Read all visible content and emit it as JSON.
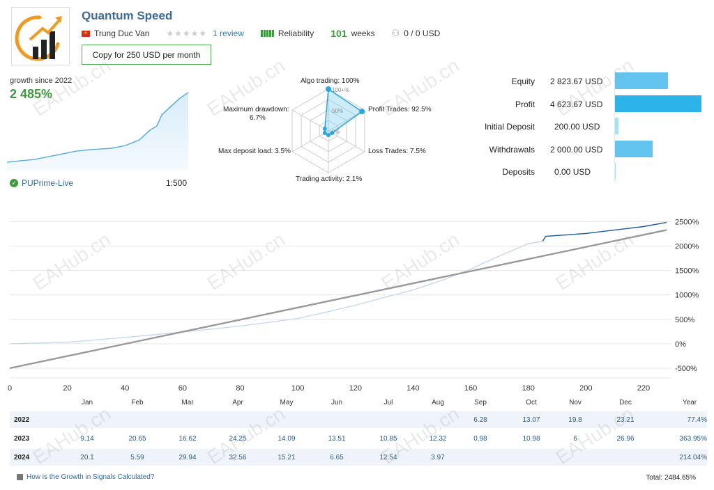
{
  "header": {
    "title": "Quantum Speed",
    "author": "Trung Duc Van",
    "review_link": "1 review",
    "reliability_label": "Reliability",
    "weeks_value": "101",
    "weeks_label": "weeks",
    "subscribers": "0 / 0 USD",
    "copy_button": "Copy for 250 USD per month",
    "rating_stars": 0,
    "reliability_bars": 5,
    "colors": {
      "accent": "#3a6b9a",
      "green": "#3d9a3d",
      "link": "#3a78b8"
    }
  },
  "growth": {
    "label": "growth since 2022",
    "value": "2 485%",
    "broker": "PUPrime-Live",
    "leverage": "1:500"
  },
  "radar": {
    "labels": {
      "algo": "Algo trading: 100%",
      "profit": "Profit Trades: 92.5%",
      "loss": "Loss Trades: 7.5%",
      "activity": "Trading activity: 2.1%",
      "deposit_load": "Max deposit load: 3.5%",
      "drawdown_title": "Maximum drawdown:",
      "drawdown_value": "6.7%"
    },
    "scale_labels": {
      "top": "100+%",
      "mid": "50%",
      "low": "0%"
    },
    "values": {
      "algo": 100,
      "profit": 92.5,
      "loss": 7.5,
      "activity": 2.1,
      "deposit_load": 3.5,
      "drawdown": 6.7
    }
  },
  "stats": [
    {
      "label": "Equity",
      "value": "2 823.67 USD",
      "amount": 2823.67,
      "color": "#63c4ef"
    },
    {
      "label": "Profit",
      "value": "4 623.67 USD",
      "amount": 4623.67,
      "color": "#2bb3ea"
    },
    {
      "label": "Initial Deposit",
      "value": "200.00 USD",
      "amount": 200.0,
      "color": "#a9e0f5"
    },
    {
      "label": "Withdrawals",
      "value": "2 000.00 USD",
      "amount": 2000.0,
      "color": "#63c4ef"
    },
    {
      "label": "Deposits",
      "value": "0.00 USD",
      "amount": 0.0,
      "color": "#a9e0f5"
    }
  ],
  "chart_data": {
    "type": "line",
    "x_ticks": [
      "0",
      "20",
      "40",
      "60",
      "80",
      "100",
      "120",
      "140",
      "160",
      "180",
      "200",
      "220"
    ],
    "y_ticks": [
      "2500%",
      "2000%",
      "1500%",
      "1000%",
      "500%",
      "0%",
      "-500%"
    ],
    "xlim": [
      0,
      228
    ],
    "ylim": [
      -700,
      2650
    ],
    "grid": true,
    "series": [
      {
        "color": "#c3d9ef",
        "x": [
          0,
          20,
          40,
          60,
          80,
          100,
          110,
          120,
          130,
          140,
          150,
          160,
          170,
          180,
          185,
          186,
          200,
          210,
          220,
          228
        ],
        "y": [
          0,
          30,
          130,
          240,
          360,
          520,
          650,
          790,
          950,
          1100,
          1300,
          1530,
          1800,
          2050,
          2100,
          2200,
          2260,
          2330,
          2400,
          2485
        ]
      },
      {
        "color": "#1f5f99",
        "x": [
          185,
          186,
          200,
          210,
          220,
          228
        ],
        "y": [
          2100,
          2200,
          2260,
          2330,
          2400,
          2485
        ]
      },
      {
        "color": "#999999",
        "x": [
          0,
          228
        ],
        "y": [
          -500,
          2330
        ]
      }
    ]
  },
  "monthly": {
    "months": [
      "Jan",
      "Feb",
      "Mar",
      "Apr",
      "May",
      "Jun",
      "Jul",
      "Aug",
      "Sep",
      "Oct",
      "Nov",
      "Dec"
    ],
    "year_header": "Year",
    "rows": [
      {
        "year": "2022",
        "values": [
          "",
          "",
          "",
          "",
          "",
          "",
          "",
          "",
          "6.28",
          "13.07",
          "19.8",
          "23.21"
        ],
        "total": "77.4%"
      },
      {
        "year": "2023",
        "values": [
          "9.14",
          "20.65",
          "16.62",
          "24.25",
          "14.09",
          "13.51",
          "10.85",
          "12.32",
          "0.98",
          "10.98",
          "6",
          "26.96"
        ],
        "total": "363.95%"
      },
      {
        "year": "2024",
        "values": [
          "20.1",
          "5.59",
          "29.94",
          "32.56",
          "15.21",
          "6.65",
          "12.54",
          "3.97",
          "",
          "",
          "",
          ""
        ],
        "total": "214.04%"
      }
    ]
  },
  "footer": {
    "link": "How is the Growth in Signals Calculated?",
    "total": "Total: 2484.65%"
  },
  "watermark": "EAHub.cn"
}
